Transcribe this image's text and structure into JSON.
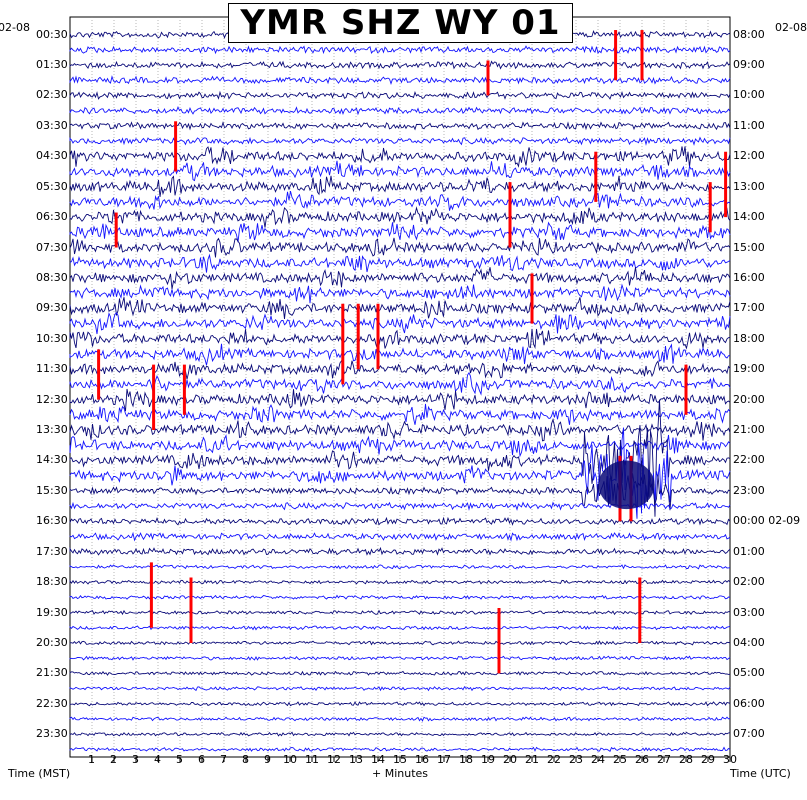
{
  "chart_data": {
    "type": "helicorder",
    "title": "YMR SHZ WY 01",
    "date_left": "02-08",
    "date_right_top": "02-08",
    "date_right_midnight": "02-09",
    "left_times": [
      "00:30",
      "01:30",
      "02:30",
      "03:30",
      "04:30",
      "05:30",
      "06:30",
      "07:30",
      "08:30",
      "09:30",
      "10:30",
      "11:30",
      "12:30",
      "13:30",
      "14:30",
      "15:30",
      "16:30",
      "17:30",
      "18:30",
      "19:30",
      "20:30",
      "21:30",
      "22:30",
      "23:30"
    ],
    "right_times": [
      "08:00",
      "09:00",
      "10:00",
      "11:00",
      "12:00",
      "13:00",
      "14:00",
      "15:00",
      "16:00",
      "17:00",
      "18:00",
      "19:00",
      "20:00",
      "21:00",
      "22:00",
      "23:00",
      "00:00",
      "01:00",
      "02:00",
      "03:00",
      "04:00",
      "05:00",
      "06:00",
      "07:00"
    ],
    "x_ticks": [
      "1",
      "2",
      "3",
      "4",
      "5",
      "6",
      "7",
      "8",
      "9",
      "10",
      "11",
      "12",
      "13",
      "14",
      "15",
      "16",
      "17",
      "18",
      "19",
      "20",
      "21",
      "22",
      "23",
      "24",
      "25",
      "26",
      "27",
      "28",
      "29",
      "30"
    ],
    "xlabel": "+ Minutes",
    "left_axis_label": "Time (MST)",
    "right_axis_label": "Time (UTC)",
    "x_range": [
      0,
      30
    ],
    "traces_per_hour": 2,
    "trace_colors": [
      "#0a0a78",
      "#1414ff"
    ],
    "event_color": "#ff0000",
    "noisy_hours": [
      4,
      15
    ],
    "events": [
      {
        "hour": 0.0,
        "minute": 24.8,
        "traces": 3
      },
      {
        "hour": 0.0,
        "minute": 26.0,
        "traces": 3
      },
      {
        "hour": 1.0,
        "minute": 19.0,
        "traces": 2
      },
      {
        "hour": 3.0,
        "minute": 4.8,
        "traces": 3
      },
      {
        "hour": 4.0,
        "minute": 23.9,
        "traces": 3
      },
      {
        "hour": 4.0,
        "minute": 29.8,
        "traces": 4
      },
      {
        "hour": 5.0,
        "minute": 20.0,
        "traces": 4
      },
      {
        "hour": 5.0,
        "minute": 29.1,
        "traces": 3
      },
      {
        "hour": 6.0,
        "minute": 2.1,
        "traces": 2
      },
      {
        "hour": 8.0,
        "minute": 21.0,
        "traces": 3
      },
      {
        "hour": 9.0,
        "minute": 12.4,
        "traces": 5
      },
      {
        "hour": 9.0,
        "minute": 13.1,
        "traces": 4
      },
      {
        "hour": 9.0,
        "minute": 14.0,
        "traces": 4
      },
      {
        "hour": 10.5,
        "minute": 1.3,
        "traces": 3
      },
      {
        "hour": 11.0,
        "minute": 3.8,
        "traces": 4
      },
      {
        "hour": 11.0,
        "minute": 5.2,
        "traces": 3
      },
      {
        "hour": 11.0,
        "minute": 28.0,
        "traces": 3
      },
      {
        "hour": 14.0,
        "minute": 25.0,
        "traces": 4
      },
      {
        "hour": 14.0,
        "minute": 25.5,
        "traces": 4
      },
      {
        "hour": 17.5,
        "minute": 3.7,
        "traces": 4
      },
      {
        "hour": 18.0,
        "minute": 5.5,
        "traces": 4
      },
      {
        "hour": 18.0,
        "minute": 25.9,
        "traces": 4
      },
      {
        "hour": 19.0,
        "minute": 19.5,
        "traces": 4
      }
    ],
    "swarm": {
      "hour": 14.5,
      "minute": 25.3
    }
  }
}
